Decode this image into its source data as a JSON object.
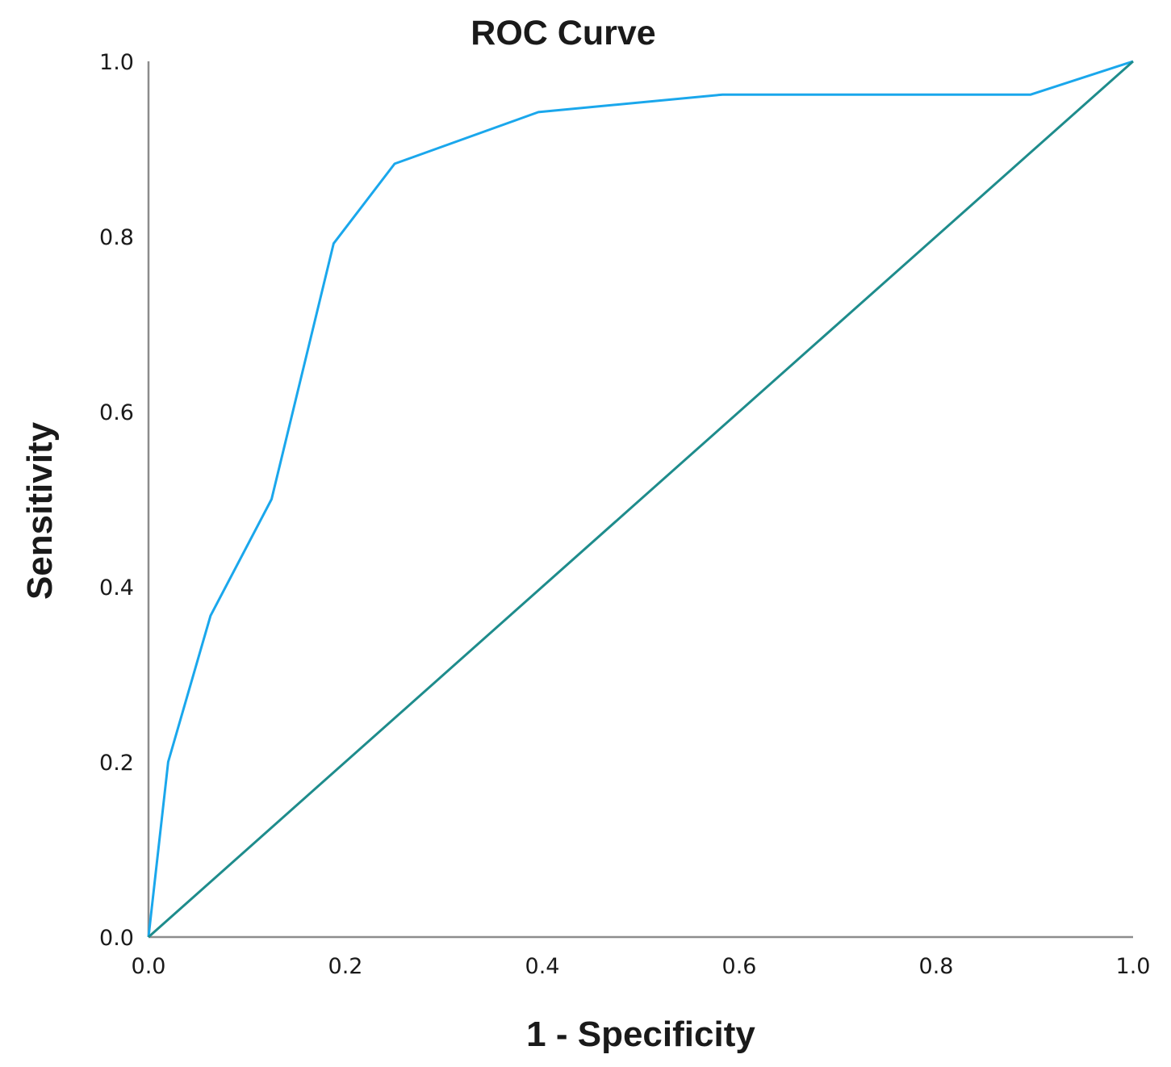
{
  "chart_data": {
    "type": "line",
    "title": "ROC Curve",
    "xlabel": "1 - Specificity",
    "ylabel": "Sensitivity",
    "xlim": [
      0.0,
      1.0
    ],
    "ylim": [
      0.0,
      1.0
    ],
    "x_ticks": [
      "0.0",
      "0.2",
      "0.4",
      "0.6",
      "0.8",
      "1.0"
    ],
    "y_ticks": [
      "0.0",
      "0.2",
      "0.4",
      "0.6",
      "0.8",
      "1.0"
    ],
    "grid": false,
    "legend": "none",
    "series": [
      {
        "color": "#1aa7ec",
        "x": [
          0.0,
          0.02,
          0.063,
          0.125,
          0.188,
          0.25,
          0.396,
          0.583,
          0.896,
          1.0
        ],
        "y": [
          0.0,
          0.2,
          0.367,
          0.5,
          0.792,
          0.883,
          0.942,
          0.962,
          0.962,
          1.0
        ]
      },
      {
        "color": "#1e8c8c",
        "x": [
          0.0,
          1.0
        ],
        "y": [
          0.0,
          1.0
        ]
      }
    ],
    "axis_color": "#8c8c8c"
  }
}
